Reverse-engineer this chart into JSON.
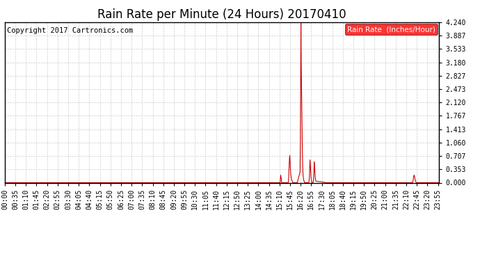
{
  "title": "Rain Rate per Minute (24 Hours) 20170410",
  "copyright_text": "Copyright 2017 Cartronics.com",
  "legend_label": "Rain Rate  (Inches/Hour)",
  "legend_bg": "#ff0000",
  "legend_fg": "#ffffff",
  "line_color": "#cc0000",
  "bg_color": "#ffffff",
  "plot_bg_color": "#ffffff",
  "grid_color": "#cccccc",
  "yticks": [
    0.0,
    0.353,
    0.707,
    1.06,
    1.413,
    1.767,
    2.12,
    2.473,
    2.827,
    3.18,
    3.533,
    3.887,
    4.24
  ],
  "ylim": [
    0.0,
    4.24
  ],
  "total_minutes": 1440,
  "title_fontsize": 12,
  "tick_fontsize": 7,
  "copyright_fontsize": 7.5
}
